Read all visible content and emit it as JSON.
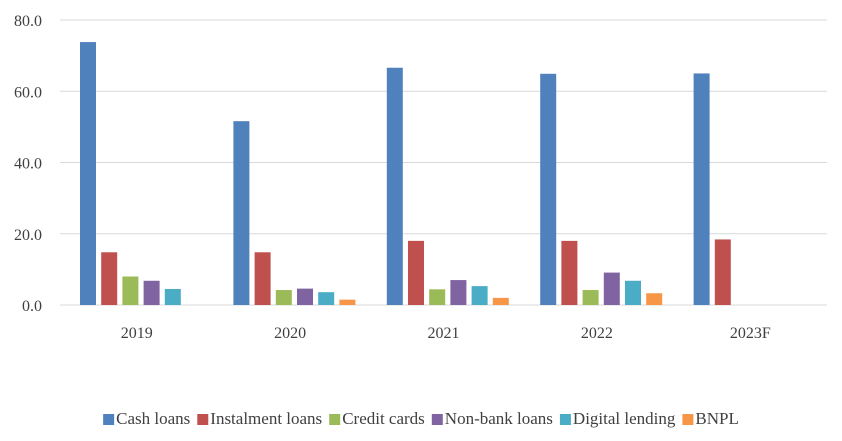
{
  "chart_data": {
    "type": "bar",
    "title": "",
    "xlabel": "",
    "ylabel": "",
    "categories": [
      "2019",
      "2020",
      "2021",
      "2022",
      "2023F"
    ],
    "ylim": [
      0,
      80
    ],
    "yticks": [
      "0.0",
      "20.0",
      "40.0",
      "60.0",
      "80.0"
    ],
    "grid": true,
    "legend_position": "bottom",
    "series": [
      {
        "name": "Cash loans",
        "color": "#4F81BD",
        "values": [
          73.8,
          51.6,
          66.6,
          64.9,
          65.0
        ]
      },
      {
        "name": "Instalment loans",
        "color": "#C0504D",
        "values": [
          14.8,
          14.8,
          18.0,
          18.0,
          18.4
        ]
      },
      {
        "name": "Credit cards",
        "color": "#9BBB59",
        "values": [
          8.0,
          4.2,
          4.4,
          4.2,
          null
        ]
      },
      {
        "name": "Non-bank loans",
        "color": "#8064A2",
        "values": [
          6.8,
          4.6,
          7.0,
          9.1,
          null
        ]
      },
      {
        "name": "Digital lending",
        "color": "#4BACC6",
        "values": [
          4.5,
          3.6,
          5.3,
          6.8,
          null
        ]
      },
      {
        "name": "BNPL",
        "color": "#F79646",
        "values": [
          null,
          1.5,
          2.0,
          3.3,
          null
        ]
      }
    ]
  }
}
